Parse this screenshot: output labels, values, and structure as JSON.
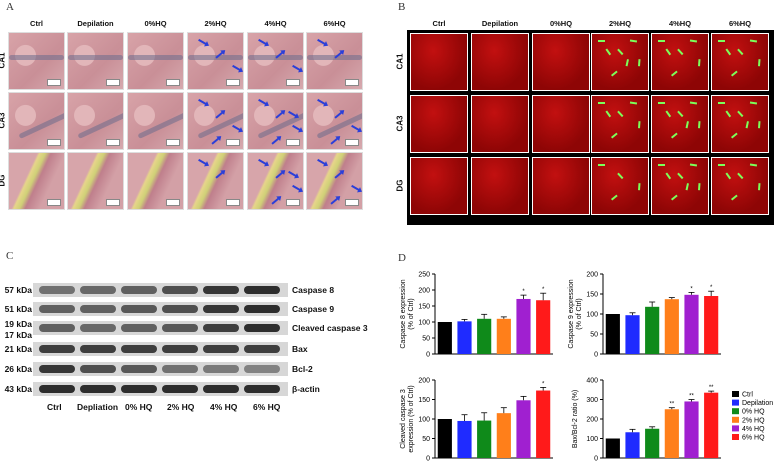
{
  "panels": {
    "a_label": "A",
    "b_label": "B",
    "c_label": "C",
    "d_label": "D"
  },
  "groups": [
    "Ctrl",
    "Depilation",
    "0%HQ",
    "2%HQ",
    "4%HQ",
    "6%HQ"
  ],
  "regions": [
    "CA1",
    "CA3",
    "DG"
  ],
  "he_arrows": {
    "CA1": [
      0,
      0,
      0,
      3,
      3,
      2
    ],
    "CA3": [
      0,
      0,
      0,
      4,
      5,
      4
    ],
    "DG": [
      0,
      0,
      0,
      2,
      5,
      4
    ]
  },
  "fluoro_marks": {
    "CA1": [
      0,
      0,
      0,
      7,
      6,
      6
    ],
    "CA3": [
      0,
      0,
      0,
      6,
      7,
      7
    ],
    "DG": [
      0,
      0,
      0,
      4,
      7,
      6
    ]
  },
  "blot": {
    "rows": [
      {
        "kda": "57 kDa",
        "name": "Caspase 8"
      },
      {
        "kda": "51 kDa",
        "name": "Caspase 9"
      },
      {
        "kda": "19 kDa",
        "kda2": "17 kDa",
        "name": "Cleaved caspase 3"
      },
      {
        "kda": "21 kDa",
        "name": "Bax"
      },
      {
        "kda": "26 kDa",
        "name": "Bcl-2"
      },
      {
        "kda": "43 kDa",
        "name": "β-actin"
      }
    ],
    "lanes": [
      "Ctrl",
      "Depliation",
      "0% HQ",
      "2% HQ",
      "4% HQ",
      "6% HQ"
    ]
  },
  "legend": {
    "entries": [
      "Ctrl",
      "Depilation",
      "0% HQ",
      "2% HQ",
      "4% HQ",
      "6% HQ"
    ],
    "colors": [
      "#000000",
      "#1f2bff",
      "#0f8a1a",
      "#ff7f1a",
      "#a020d0",
      "#ff1a1a"
    ]
  },
  "chart_data": [
    {
      "type": "bar",
      "ylabel": "Caspase 8 expression (% of Ctrl)",
      "ylim": [
        0,
        250
      ],
      "yticks": [
        "0",
        "50",
        "100",
        "150",
        "200",
        "250"
      ],
      "values": [
        100,
        102,
        110,
        110,
        172,
        168
      ],
      "errors": [
        0,
        6,
        14,
        6,
        12,
        22
      ],
      "annotations": [
        "",
        "",
        "",
        "",
        "*",
        "*"
      ]
    },
    {
      "type": "bar",
      "ylabel": "Caspase 9 expression (% of Ctrl)",
      "ylim": [
        0,
        200
      ],
      "yticks": [
        "0",
        "50",
        "100",
        "150",
        "200"
      ],
      "values": [
        100,
        97,
        118,
        137,
        148,
        145
      ],
      "errors": [
        0,
        6,
        12,
        4,
        6,
        12
      ],
      "annotations": [
        "",
        "",
        "",
        "",
        "*",
        "*"
      ]
    },
    {
      "type": "bar",
      "ylabel": "Cleaved caspase 3 expression (% of Ctrl)",
      "ylim": [
        0,
        200
      ],
      "yticks": [
        "0",
        "50",
        "100",
        "150",
        "200"
      ],
      "values": [
        100,
        95,
        96,
        115,
        148,
        173
      ],
      "errors": [
        0,
        16,
        20,
        14,
        10,
        8
      ],
      "annotations": [
        "",
        "",
        "",
        "",
        "",
        "*"
      ]
    },
    {
      "type": "bar",
      "ylabel": "Bax/Bcl-2 ratio (%)",
      "ylim": [
        0,
        400
      ],
      "yticks": [
        "0",
        "100",
        "200",
        "300",
        "400"
      ],
      "values": [
        100,
        132,
        150,
        250,
        290,
        335
      ],
      "errors": [
        0,
        15,
        10,
        8,
        10,
        8
      ],
      "annotations": [
        "",
        "",
        "",
        "**",
        "**",
        "**"
      ]
    }
  ]
}
